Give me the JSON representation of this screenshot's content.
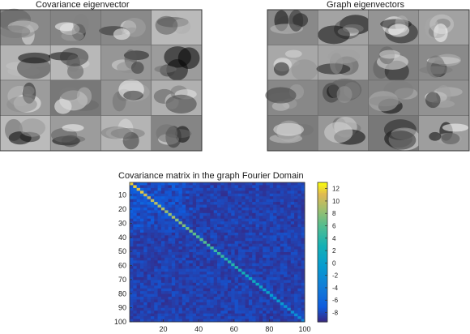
{
  "panels": {
    "left_title": "Covariance eigenvector",
    "right_title": "Graph eigenvectors"
  },
  "chart_data": {
    "type": "heatmap",
    "title": "Covariance matrix in the graph Fourier Domain",
    "xlabel": "",
    "ylabel": "",
    "x_ticks": [
      "20",
      "40",
      "60",
      "80",
      "100"
    ],
    "y_ticks": [
      "10",
      "20",
      "30",
      "40",
      "50",
      "60",
      "70",
      "80",
      "90",
      "100"
    ],
    "xlim": [
      1,
      100
    ],
    "ylim": [
      1,
      100
    ],
    "colorbar_ticks": [
      "12",
      "10",
      "8",
      "6",
      "4",
      "2",
      "0",
      "-2",
      "-4",
      "-6",
      "-8"
    ],
    "colorbar_range": [
      -9.5,
      13
    ],
    "colormap": "parula",
    "notes_from_image": {
      "background_value": -8.5,
      "diagonal_peak": 12,
      "diagonal_tail": -3
    }
  }
}
